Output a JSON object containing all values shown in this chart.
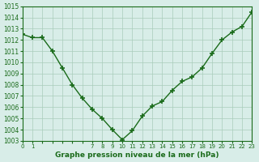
{
  "x": [
    0,
    1,
    2,
    3,
    4,
    5,
    6,
    7,
    8,
    9,
    10,
    11,
    12,
    13,
    14,
    15,
    16,
    17,
    18,
    19,
    20,
    21,
    22,
    23
  ],
  "y": [
    1012.5,
    1012.2,
    1012.2,
    1011.0,
    1009.5,
    1008.0,
    1006.8,
    1005.8,
    1005.0,
    1004.0,
    1003.1,
    1003.9,
    1005.2,
    1006.1,
    1006.5,
    1007.5,
    1008.3,
    1008.7,
    1009.5,
    1010.8,
    1012.0,
    1012.7,
    1013.2,
    1014.5
  ],
  "ylim": [
    1003,
    1015
  ],
  "xlim": [
    0,
    23
  ],
  "yticks": [
    1003,
    1004,
    1005,
    1006,
    1007,
    1008,
    1009,
    1010,
    1011,
    1012,
    1013,
    1014,
    1015
  ],
  "xtick_labels_shown": [
    0,
    1,
    7,
    8,
    9,
    10,
    11,
    12,
    13,
    14,
    15,
    16,
    17,
    18,
    19,
    20,
    21,
    22,
    23
  ],
  "line_color": "#1a6b1a",
  "marker_color": "#1a6b1a",
  "bg_color": "#d8ede8",
  "grid_color": "#aaccbb",
  "xlabel": "Graphe pression niveau de la mer (hPa)",
  "xlabel_color": "#1a6b1a",
  "axis_color": "#1a6b1a",
  "tick_color": "#1a6b1a"
}
